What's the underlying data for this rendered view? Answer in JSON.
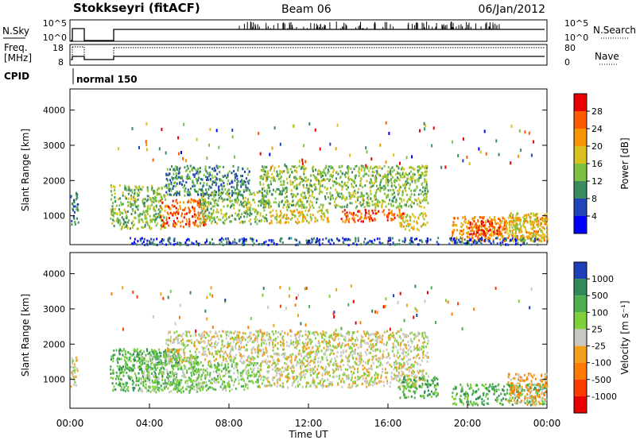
{
  "header": {
    "station": "Stokkseyri (fitACF)",
    "beam": "Beam 06",
    "date": "06/Jan/2012"
  },
  "status_panels": {
    "nsky_label": "N.Sky",
    "nsky_ticks": [
      "10^5",
      "10^0"
    ],
    "nsearch_label": "N.Search",
    "nsearch_ticks": [
      "10^5",
      "10^0"
    ],
    "freq_label": "Freq.",
    "freq_unit": "[MHz]",
    "freq_ticks": [
      "18",
      "8"
    ],
    "nave_label": "Nave",
    "nave_ticks": [
      "80",
      "0"
    ],
    "cpid_label": "CPID",
    "cpid_value": "normal 150"
  },
  "chart_data": [
    {
      "type": "heatmap",
      "name": "power",
      "ylabel": "Slant Range [km]",
      "yticks": [
        "4000",
        "3000",
        "2000",
        "1000"
      ],
      "ylim": [
        180,
        4600
      ],
      "xlim_hours": [
        0,
        24
      ],
      "colorbar_title": "Power [dB]",
      "colorbar_ticks": [
        "28",
        "24",
        "20",
        "16",
        "12",
        "8",
        "4"
      ],
      "colorbar_colors": [
        "#e80000",
        "#ff5a00",
        "#f59500",
        "#d9c21f",
        "#7dc142",
        "#3a8c5e",
        "#2244b8",
        "#0000ff"
      ],
      "regions": [
        {
          "t": [
            0.0,
            0.4
          ],
          "r": [
            1100,
            1750
          ],
          "level": 2
        },
        {
          "t": [
            0.0,
            0.4
          ],
          "r": [
            750,
            1050
          ],
          "level": 2
        },
        {
          "t": [
            2.0,
            4.8
          ],
          "r": [
            650,
            1900
          ],
          "level": 3
        },
        {
          "t": [
            4.5,
            6.8
          ],
          "r": [
            700,
            1500
          ],
          "level": 6
        },
        {
          "t": [
            4.8,
            9.0
          ],
          "r": [
            1600,
            2450
          ],
          "level": 2
        },
        {
          "t": [
            6.5,
            10.0
          ],
          "r": [
            800,
            1700
          ],
          "level": 3
        },
        {
          "t": [
            9.5,
            18.0
          ],
          "r": [
            1250,
            2450
          ],
          "level": 3
        },
        {
          "t": [
            10.0,
            13.0
          ],
          "r": [
            800,
            1200
          ],
          "level": 4
        },
        {
          "t": [
            13.5,
            16.8
          ],
          "r": [
            850,
            1200
          ],
          "level": 6
        },
        {
          "t": [
            16.5,
            18.0
          ],
          "r": [
            600,
            1100
          ],
          "level": 4
        },
        {
          "t": [
            19.2,
            24.0
          ],
          "r": [
            300,
            1000
          ],
          "level": 5
        },
        {
          "t": [
            20.0,
            21.8
          ],
          "r": [
            350,
            900
          ],
          "level": 6
        },
        {
          "t": [
            22.0,
            24.0
          ],
          "r": [
            300,
            1100
          ],
          "level": 4
        },
        {
          "t": [
            3.0,
            23.5
          ],
          "r": [
            200,
            400
          ],
          "level": 1
        }
      ]
    },
    {
      "type": "heatmap",
      "name": "velocity",
      "ylabel": "Slant Range [km]",
      "yticks": [
        "4000",
        "3000",
        "2000",
        "1000"
      ],
      "ylim": [
        180,
        4600
      ],
      "xlim_hours": [
        0,
        24
      ],
      "xlabel": "Time UT",
      "xticks": [
        "00:00",
        "04:00",
        "08:00",
        "12:00",
        "16:00",
        "20:00",
        "00:00"
      ],
      "colorbar_title": "Velocity [m s⁻¹]",
      "colorbar_ticks": [
        "1000",
        "500",
        "100",
        "25",
        "-25",
        "-100",
        "-500",
        "-1000"
      ],
      "colorbar_colors": [
        "#1f3fb8",
        "#2e8b57",
        "#4caf50",
        "#7fd13b",
        "#c8c8c0",
        "#f2a01c",
        "#ff7a00",
        "#ff3b00",
        "#e80000"
      ],
      "regions": [
        {
          "t": [
            0.0,
            0.4
          ],
          "r": [
            800,
            1700
          ],
          "level": 4
        },
        {
          "t": [
            2.0,
            5.5
          ],
          "r": [
            700,
            1900
          ],
          "level": 6
        },
        {
          "t": [
            3.5,
            6.5
          ],
          "r": [
            650,
            1700
          ],
          "level": 5
        },
        {
          "t": [
            4.8,
            9.5
          ],
          "r": [
            1500,
            2400
          ],
          "level": 4
        },
        {
          "t": [
            6.0,
            9.5
          ],
          "r": [
            700,
            1500
          ],
          "level": 5
        },
        {
          "t": [
            9.5,
            18.0
          ],
          "r": [
            800,
            2400
          ],
          "level": 4
        },
        {
          "t": [
            16.5,
            18.5
          ],
          "r": [
            500,
            1100
          ],
          "level": 6
        },
        {
          "t": [
            19.2,
            24.0
          ],
          "r": [
            300,
            900
          ],
          "level": 6
        },
        {
          "t": [
            22.0,
            24.0
          ],
          "r": [
            300,
            1200
          ],
          "level": 3
        }
      ]
    }
  ]
}
